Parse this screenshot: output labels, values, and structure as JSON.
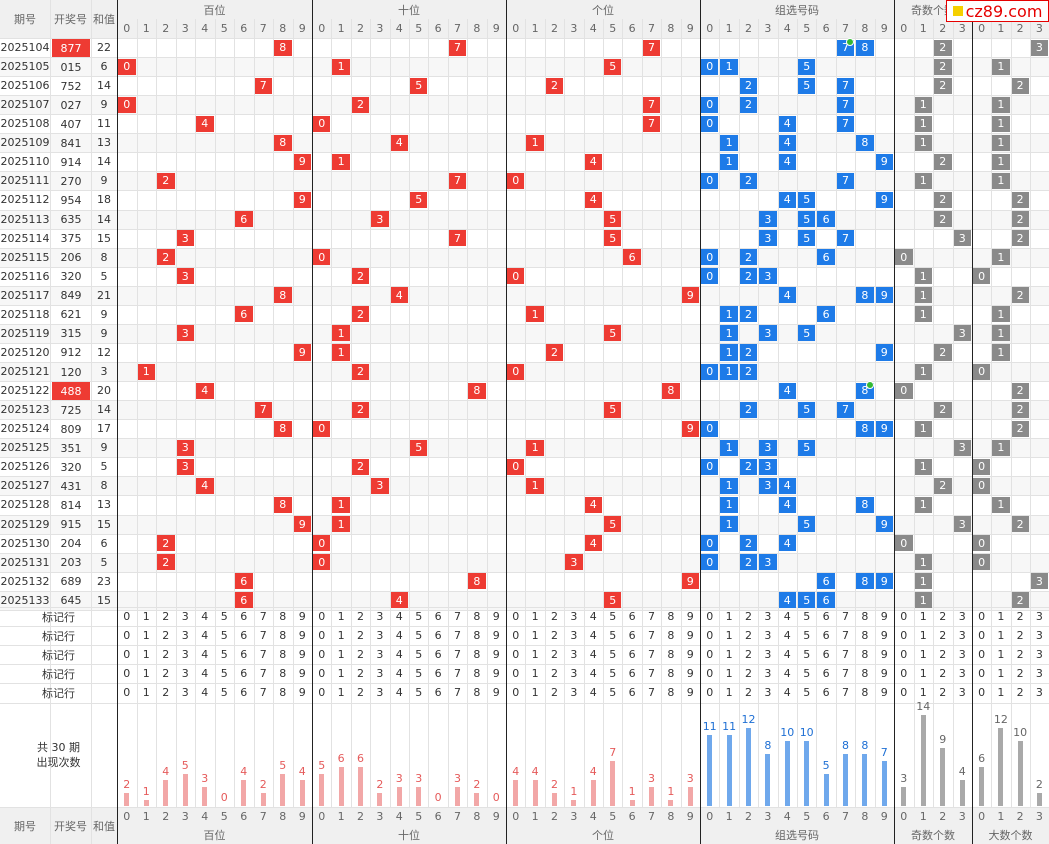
{
  "header": {
    "col_term": "期号",
    "col_num": "开奖号",
    "col_sum": "和值",
    "groups": [
      "百位",
      "十位",
      "个位",
      "组选号码",
      "奇数个数",
      "大数个数"
    ],
    "bottom_groups": [
      "百位",
      "十位",
      "个位",
      "组选号码",
      "奇数个数",
      "大数个数"
    ]
  },
  "logo": {
    "text": "cz89.com"
  },
  "digits10": [
    "0",
    "1",
    "2",
    "3",
    "4",
    "5",
    "6",
    "7",
    "8",
    "9"
  ],
  "digits4": [
    "0",
    "1",
    "2",
    "3"
  ],
  "rows": [
    {
      "term": "2025104",
      "num": "877",
      "sum": "22",
      "hl": true,
      "b": 8,
      "s": 7,
      "g": 7,
      "zu": [
        7,
        8
      ],
      "zub": [
        7
      ],
      "odd": 2,
      "big": 3
    },
    {
      "term": "2025105",
      "num": "015",
      "sum": "6",
      "hl": false,
      "b": 0,
      "s": 1,
      "g": 5,
      "zu": [
        0,
        1,
        5
      ],
      "zub": [],
      "odd": 2,
      "big": 1
    },
    {
      "term": "2025106",
      "num": "752",
      "sum": "14",
      "hl": false,
      "b": 7,
      "s": 5,
      "g": 2,
      "zu": [
        2,
        5,
        7
      ],
      "zub": [],
      "odd": 2,
      "big": 2
    },
    {
      "term": "2025107",
      "num": "027",
      "sum": "9",
      "hl": false,
      "b": 0,
      "s": 2,
      "g": 7,
      "zu": [
        0,
        2,
        7
      ],
      "zub": [],
      "odd": 1,
      "big": 1
    },
    {
      "term": "2025108",
      "num": "407",
      "sum": "11",
      "hl": false,
      "b": 4,
      "s": 0,
      "g": 7,
      "zu": [
        0,
        4,
        7
      ],
      "zub": [],
      "odd": 1,
      "big": 1
    },
    {
      "term": "2025109",
      "num": "841",
      "sum": "13",
      "hl": false,
      "b": 8,
      "s": 4,
      "g": 1,
      "zu": [
        1,
        4,
        8
      ],
      "zub": [],
      "odd": 1,
      "big": 1
    },
    {
      "term": "2025110",
      "num": "914",
      "sum": "14",
      "hl": false,
      "b": 9,
      "s": 1,
      "g": 4,
      "zu": [
        1,
        4,
        9
      ],
      "zub": [],
      "odd": 2,
      "big": 1
    },
    {
      "term": "2025111",
      "num": "270",
      "sum": "9",
      "hl": false,
      "b": 2,
      "s": 7,
      "g": 0,
      "zu": [
        0,
        2,
        7
      ],
      "zub": [],
      "odd": 1,
      "big": 1
    },
    {
      "term": "2025112",
      "num": "954",
      "sum": "18",
      "hl": false,
      "b": 9,
      "s": 5,
      "g": 4,
      "zu": [
        4,
        5,
        9
      ],
      "zub": [],
      "odd": 2,
      "big": 2
    },
    {
      "term": "2025113",
      "num": "635",
      "sum": "14",
      "hl": false,
      "b": 6,
      "s": 3,
      "g": 5,
      "zu": [
        3,
        5,
        6
      ],
      "zub": [],
      "odd": 2,
      "big": 2
    },
    {
      "term": "2025114",
      "num": "375",
      "sum": "15",
      "hl": false,
      "b": 3,
      "s": 7,
      "g": 5,
      "zu": [
        3,
        5,
        7
      ],
      "zub": [],
      "odd": 3,
      "big": 2
    },
    {
      "term": "2025115",
      "num": "206",
      "sum": "8",
      "hl": false,
      "b": 2,
      "s": 0,
      "g": 6,
      "zu": [
        0,
        2,
        6
      ],
      "zub": [],
      "odd": 0,
      "big": 1
    },
    {
      "term": "2025116",
      "num": "320",
      "sum": "5",
      "hl": false,
      "b": 3,
      "s": 2,
      "g": 0,
      "zu": [
        0,
        2,
        3
      ],
      "zub": [],
      "odd": 1,
      "big": 0
    },
    {
      "term": "2025117",
      "num": "849",
      "sum": "21",
      "hl": false,
      "b": 8,
      "s": 4,
      "g": 9,
      "zu": [
        4,
        8,
        9
      ],
      "zub": [],
      "odd": 1,
      "big": 2
    },
    {
      "term": "2025118",
      "num": "621",
      "sum": "9",
      "hl": false,
      "b": 6,
      "s": 2,
      "g": 1,
      "zu": [
        1,
        2,
        6
      ],
      "zub": [],
      "odd": 1,
      "big": 1
    },
    {
      "term": "2025119",
      "num": "315",
      "sum": "9",
      "hl": false,
      "b": 3,
      "s": 1,
      "g": 5,
      "zu": [
        1,
        3,
        5
      ],
      "zub": [],
      "odd": 3,
      "big": 1
    },
    {
      "term": "2025120",
      "num": "912",
      "sum": "12",
      "hl": false,
      "b": 9,
      "s": 1,
      "g": 2,
      "zu": [
        1,
        2,
        9
      ],
      "zub": [],
      "odd": 2,
      "big": 1
    },
    {
      "term": "2025121",
      "num": "120",
      "sum": "3",
      "hl": false,
      "b": 1,
      "s": 2,
      "g": 0,
      "zu": [
        0,
        1,
        2
      ],
      "zub": [],
      "odd": 1,
      "big": 0
    },
    {
      "term": "2025122",
      "num": "488",
      "sum": "20",
      "hl": true,
      "b": 4,
      "s": 8,
      "g": 8,
      "zu": [
        4,
        8
      ],
      "zub": [
        8
      ],
      "odd": 0,
      "big": 2
    },
    {
      "term": "2025123",
      "num": "725",
      "sum": "14",
      "hl": false,
      "b": 7,
      "s": 2,
      "g": 5,
      "zu": [
        2,
        5,
        7
      ],
      "zub": [],
      "odd": 2,
      "big": 2
    },
    {
      "term": "2025124",
      "num": "809",
      "sum": "17",
      "hl": false,
      "b": 8,
      "s": 0,
      "g": 9,
      "zu": [
        0,
        8,
        9
      ],
      "zub": [],
      "odd": 1,
      "big": 2
    },
    {
      "term": "2025125",
      "num": "351",
      "sum": "9",
      "hl": false,
      "b": 3,
      "s": 5,
      "g": 1,
      "zu": [
        1,
        3,
        5
      ],
      "zub": [],
      "odd": 3,
      "big": 1
    },
    {
      "term": "2025126",
      "num": "320",
      "sum": "5",
      "hl": false,
      "b": 3,
      "s": 2,
      "g": 0,
      "zu": [
        0,
        2,
        3
      ],
      "zub": [],
      "odd": 1,
      "big": 0
    },
    {
      "term": "2025127",
      "num": "431",
      "sum": "8",
      "hl": false,
      "b": 4,
      "s": 3,
      "g": 1,
      "zu": [
        1,
        3,
        4
      ],
      "zub": [],
      "odd": 2,
      "big": 0
    },
    {
      "term": "2025128",
      "num": "814",
      "sum": "13",
      "hl": false,
      "b": 8,
      "s": 1,
      "g": 4,
      "zu": [
        1,
        4,
        8
      ],
      "zub": [],
      "odd": 1,
      "big": 1
    },
    {
      "term": "2025129",
      "num": "915",
      "sum": "15",
      "hl": false,
      "b": 9,
      "s": 1,
      "g": 5,
      "zu": [
        1,
        5,
        9
      ],
      "zub": [],
      "odd": 3,
      "big": 2
    },
    {
      "term": "2025130",
      "num": "204",
      "sum": "6",
      "hl": false,
      "b": 2,
      "s": 0,
      "g": 4,
      "zu": [
        0,
        2,
        4
      ],
      "zub": [],
      "odd": 0,
      "big": 0
    },
    {
      "term": "2025131",
      "num": "203",
      "sum": "5",
      "hl": false,
      "b": 2,
      "s": 0,
      "g": 3,
      "zu": [
        0,
        2,
        3
      ],
      "zub": [],
      "odd": 1,
      "big": 0
    },
    {
      "term": "2025132",
      "num": "689",
      "sum": "23",
      "hl": false,
      "b": 6,
      "s": 8,
      "g": 9,
      "zu": [
        6,
        8,
        9
      ],
      "zub": [],
      "odd": 1,
      "big": 3
    },
    {
      "term": "2025133",
      "num": "645",
      "sum": "15",
      "hl": false,
      "b": 6,
      "s": 4,
      "g": 5,
      "zu": [
        4,
        5,
        6
      ],
      "zub": [],
      "odd": 1,
      "big": 2
    }
  ],
  "mark_label": "标记行",
  "mark_rows": 5,
  "stats": {
    "line1": "共 30 期",
    "line2": "出现次数",
    "bai": [
      2,
      1,
      4,
      5,
      3,
      0,
      4,
      2,
      5,
      4
    ],
    "shi": [
      5,
      6,
      6,
      2,
      3,
      3,
      0,
      3,
      2,
      0
    ],
    "ge": [
      4,
      4,
      2,
      1,
      4,
      7,
      1,
      3,
      1,
      3
    ],
    "zu": [
      11,
      11,
      12,
      8,
      10,
      10,
      5,
      8,
      8,
      7
    ],
    "odd": [
      3,
      14,
      9,
      4
    ],
    "big": [
      6,
      12,
      10,
      2
    ]
  },
  "colors": {
    "red": "#ee3b33",
    "blue": "#1e7be8",
    "grey": "#8a8a8a",
    "pink": "#f2a7a7",
    "lightblue": "#6fa8ec",
    "lightgrey": "#a9a9a9"
  }
}
